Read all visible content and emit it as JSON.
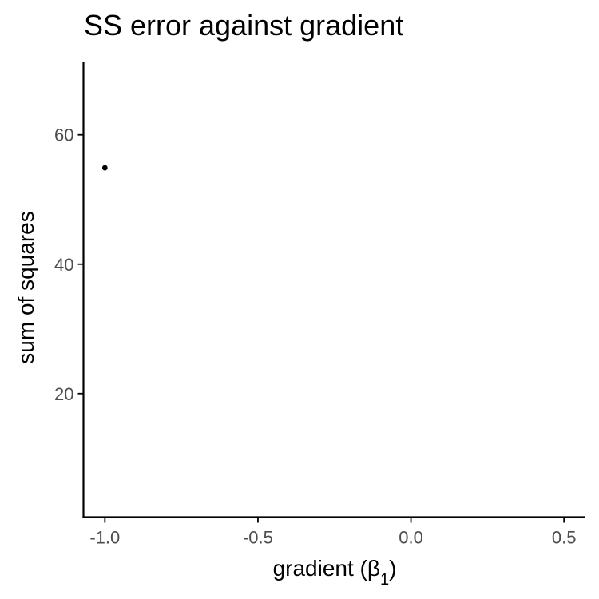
{
  "chart_data": {
    "type": "scatter",
    "title": "SS error against gradient",
    "xlabel_prefix": "gradient (",
    "xlabel_symbol": "β",
    "xlabel_subscript": "1",
    "xlabel_suffix": ")",
    "ylabel": "sum of squares",
    "xlim": [
      -1.07,
      0.57
    ],
    "ylim": [
      0.9,
      71.2
    ],
    "xticks": [
      -1.0,
      -0.5,
      0.0,
      0.5
    ],
    "xtick_labels": [
      "-1.0",
      "-0.5",
      "0.0",
      "0.5"
    ],
    "yticks": [
      20,
      40,
      60
    ],
    "ytick_labels": [
      "20",
      "40",
      "60"
    ],
    "points": [
      {
        "x": -1.0,
        "y": 54.9
      }
    ],
    "grid": false,
    "point_color": "#000000",
    "tick_label_color": "#4d4d4d"
  }
}
